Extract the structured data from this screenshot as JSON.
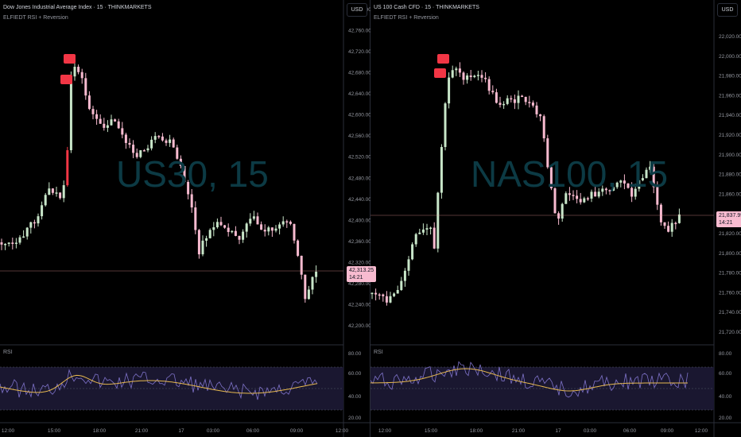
{
  "panes": [
    {
      "title": "Dow Jones Industrial Average Index · 15 · THINKMARKETS",
      "subtitle": "ELFIEDT RSI + Reversion",
      "watermark": "US30, 15",
      "currency": "USD",
      "price_label": "42,313.25",
      "countdown": "14:21",
      "price_ticks": [
        "42,800.00",
        "42,760.00",
        "42,720.00",
        "42,680.00",
        "42,640.00",
        "42,600.00",
        "42,560.00",
        "42,520.00",
        "42,480.00",
        "42,440.00",
        "42,400.00",
        "42,360.00",
        "42,320.00",
        "42,280.00",
        "42,240.00",
        "42,200.00"
      ],
      "rsi_label": "RSI",
      "rsi_ticks": [
        "80.00",
        "60.00",
        "40.00",
        "20.00"
      ],
      "time_ticks": [
        "12:00",
        "15:00",
        "18:00",
        "21:00",
        "17",
        "03:00",
        "06:00",
        "09:00",
        "12:00"
      ]
    },
    {
      "title": "US 100 Cash CFD · 15 · THINKMARKETS",
      "subtitle": "ELFIEDT RSI + Reversion",
      "watermark": "NAS100, 15",
      "currency": "USD",
      "price_label": "21,837.99",
      "countdown": "14:21",
      "price_ticks": [
        "22,020.00",
        "22,000.00",
        "21,980.00",
        "21,960.00",
        "21,940.00",
        "21,920.00",
        "21,900.00",
        "21,880.00",
        "21,860.00",
        "21,840.00",
        "21,820.00",
        "21,800.00",
        "21,780.00",
        "21,760.00",
        "21,740.00",
        "21,720.00"
      ],
      "rsi_label": "RSI",
      "rsi_ticks": [
        "80.00",
        "60.00",
        "40.00",
        "20.00"
      ],
      "time_ticks": [
        "12:00",
        "15:00",
        "18:00",
        "21:00",
        "17",
        "03:00",
        "06:00",
        "09:00",
        "12:00"
      ]
    }
  ],
  "colors": {
    "up": "#c8e6c9",
    "down": "#f8bbd0",
    "spike": "#f23645",
    "rsi_line": "#7e72c9",
    "rsi_ma": "#e6b84f",
    "price_line": "#ef9a9a"
  }
}
